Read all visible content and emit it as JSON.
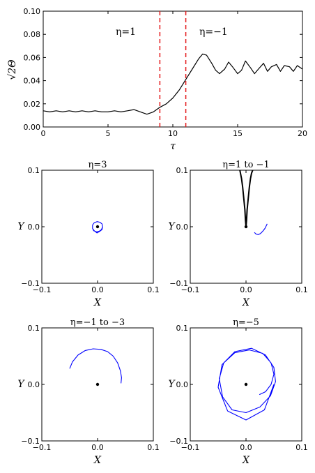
{
  "chart_data": [
    {
      "type": "line",
      "xlabel": "τ",
      "ylabel": "√2Θ",
      "xlim": [
        0,
        20
      ],
      "ylim": [
        0,
        0.1
      ],
      "xticks": [
        "0",
        "5",
        "10",
        "15",
        "20"
      ],
      "yticks": [
        "0.00",
        "0.02",
        "0.04",
        "0.06",
        "0.08",
        "0.10"
      ],
      "vlines": [
        9,
        11
      ],
      "vline_color": "#e41a1c",
      "line_color": "#000000",
      "annotations": [
        "η=1",
        "η=−1"
      ],
      "series": [
        {
          "x": [
            0,
            0.5,
            1,
            1.5,
            2,
            2.5,
            3,
            3.5,
            4,
            4.5,
            5,
            5.5,
            6,
            6.5,
            7,
            7.5,
            8,
            8.5,
            9,
            9.5,
            10,
            10.5,
            11,
            11.5,
            12,
            12.3,
            12.6,
            13,
            13.3,
            13.6,
            14,
            14.3,
            14.6,
            15,
            15.3,
            15.6,
            16,
            16.3,
            16.6,
            17,
            17.3,
            17.6,
            18,
            18.3,
            18.6,
            19,
            19.3,
            19.6,
            20
          ],
          "y": [
            0.014,
            0.013,
            0.014,
            0.013,
            0.014,
            0.013,
            0.014,
            0.013,
            0.014,
            0.013,
            0.013,
            0.014,
            0.013,
            0.014,
            0.015,
            0.013,
            0.011,
            0.013,
            0.017,
            0.02,
            0.025,
            0.032,
            0.041,
            0.05,
            0.059,
            0.063,
            0.062,
            0.055,
            0.049,
            0.046,
            0.05,
            0.056,
            0.052,
            0.046,
            0.049,
            0.057,
            0.051,
            0.046,
            0.05,
            0.055,
            0.048,
            0.052,
            0.054,
            0.048,
            0.053,
            0.052,
            0.048,
            0.053,
            0.05
          ]
        }
      ]
    },
    {
      "type": "scatter",
      "title": "η=3",
      "xlabel": "X",
      "ylabel": "Y",
      "xlim": [
        -0.1,
        0.1
      ],
      "ylim": [
        -0.1,
        0.1
      ],
      "xticks": [
        "−0.1",
        "0.0",
        "0.1"
      ],
      "yticks": [
        "−0.1",
        "0.0",
        "0.1"
      ],
      "series": [
        {
          "color": "#0000ff",
          "x": [
            0.009,
            0.008,
            0.004,
            -0.001,
            -0.006,
            -0.009,
            -0.009,
            -0.007,
            -0.002,
            0.003,
            0.007,
            0.009,
            0.008,
            0.004,
            -0.001,
            -0.006,
            -0.009,
            -0.009,
            -0.006,
            -0.001,
            0.004,
            0.008,
            0.009
          ],
          "y": [
            0.0,
            0.005,
            0.008,
            0.009,
            0.007,
            0.003,
            -0.003,
            -0.007,
            -0.009,
            -0.008,
            -0.005,
            0.0,
            0.005,
            0.008,
            0.009,
            0.007,
            0.003,
            -0.003,
            -0.007,
            -0.011,
            -0.008,
            -0.005,
            0.0
          ]
        }
      ]
    },
    {
      "type": "scatter",
      "title": "η=1 to −1",
      "xlabel": "X",
      "ylabel": "Y",
      "xlim": [
        -0.1,
        0.1
      ],
      "ylim": [
        -0.1,
        0.1
      ],
      "xticks": [
        "−0.1",
        "0.0",
        "0.1"
      ],
      "yticks": [
        "−0.1",
        "0.0",
        "0.1"
      ],
      "series": [
        {
          "color": "#000000",
          "x": [
            0.0,
            -0.001,
            -0.002,
            -0.004,
            -0.006,
            -0.008,
            -0.01,
            -0.011
          ],
          "y": [
            0.0,
            0.012,
            0.03,
            0.05,
            0.07,
            0.085,
            0.095,
            0.1
          ]
        },
        {
          "color": "#000000",
          "x": [
            0.0,
            0.001,
            0.002,
            0.004,
            0.006,
            0.008,
            0.01,
            0.012
          ],
          "y": [
            0.0,
            0.012,
            0.03,
            0.05,
            0.07,
            0.085,
            0.095,
            0.1
          ]
        },
        {
          "color": "#0000ff",
          "x": [
            0.015,
            0.018,
            0.022,
            0.026,
            0.03,
            0.034,
            0.038
          ],
          "y": [
            -0.01,
            -0.013,
            -0.014,
            -0.012,
            -0.008,
            -0.003,
            0.005
          ]
        }
      ]
    },
    {
      "type": "scatter",
      "title": "η=−1 to −3",
      "xlabel": "X",
      "ylabel": "Y",
      "xlim": [
        -0.1,
        0.1
      ],
      "ylim": [
        -0.1,
        0.1
      ],
      "xticks": [
        "−0.1",
        "0.0",
        "0.1"
      ],
      "yticks": [
        "−0.1",
        "0.0",
        "0.1"
      ],
      "series": [
        {
          "color": "#0000ff",
          "x": [
            -0.05,
            -0.045,
            -0.035,
            -0.022,
            -0.008,
            0.006,
            0.018,
            0.028,
            0.036,
            0.041,
            0.043,
            0.042
          ],
          "y": [
            0.028,
            0.04,
            0.052,
            0.06,
            0.063,
            0.062,
            0.058,
            0.05,
            0.038,
            0.024,
            0.012,
            0.002
          ]
        }
      ]
    },
    {
      "type": "scatter",
      "title": "η=−5",
      "xlabel": "X",
      "ylabel": "Y",
      "xlim": [
        -0.1,
        0.1
      ],
      "ylim": [
        -0.1,
        0.1
      ],
      "xticks": [
        "−0.1",
        "0.0",
        "0.1"
      ],
      "yticks": [
        "−0.1",
        "0.0",
        "0.1"
      ],
      "series": [
        {
          "color": "#0000ff",
          "x": [
            0.05,
            0.033,
            0.0,
            -0.033,
            -0.05,
            -0.043,
            -0.02,
            0.01,
            0.035,
            0.05,
            0.053,
            0.044,
            0.025,
            0.0,
            -0.025,
            -0.042,
            -0.048,
            -0.04,
            -0.02,
            0.006,
            0.03,
            0.045,
            0.05,
            0.045,
            0.035,
            0.024
          ],
          "y": [
            0.0,
            -0.045,
            -0.063,
            -0.047,
            -0.005,
            0.035,
            0.058,
            0.064,
            0.052,
            0.03,
            0.005,
            -0.02,
            -0.04,
            -0.05,
            -0.045,
            -0.022,
            0.01,
            0.038,
            0.056,
            0.061,
            0.055,
            0.038,
            0.018,
            0.0,
            -0.013,
            -0.018
          ]
        }
      ]
    }
  ]
}
